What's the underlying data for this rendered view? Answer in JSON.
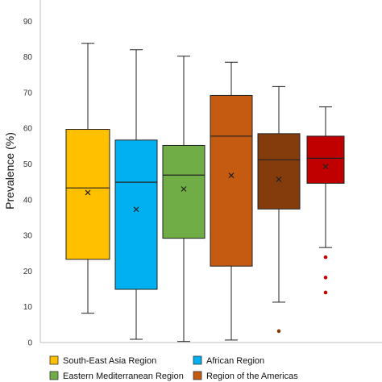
{
  "chart_data": {
    "type": "box",
    "ylabel": "Prevalence (%)",
    "ylim": [
      0,
      100
    ],
    "yticks": [
      0,
      10,
      20,
      30,
      40,
      50,
      60,
      70,
      80,
      90
    ],
    "grid": false,
    "legend_position": "bottom",
    "series": [
      {
        "name": "South-East Asia Region",
        "color": "#FFC000",
        "min": 8.2,
        "q1": 23.3,
        "median": 43.3,
        "q3": 59.7,
        "max": 83.8,
        "mean": 42.0,
        "outliers": []
      },
      {
        "name": "African Region",
        "color": "#00B0F0",
        "min": 0.9,
        "q1": 14.9,
        "median": 44.9,
        "q3": 56.7,
        "max": 82.0,
        "mean": 37.3,
        "outliers": []
      },
      {
        "name": "Eastern Mediterranean Region",
        "color": "#70AD47",
        "min": 0.3,
        "q1": 29.2,
        "median": 46.9,
        "q3": 55.2,
        "max": 80.2,
        "mean": 43.0,
        "outliers": []
      },
      {
        "name": "Region of the Americas",
        "color": "#C55A11",
        "min": 0.7,
        "q1": 21.4,
        "median": 57.8,
        "q3": 69.2,
        "max": 78.5,
        "mean": 46.8,
        "outliers": []
      },
      {
        "name": "",
        "color": "#843C0C",
        "min": 11.3,
        "q1": 37.4,
        "median": 51.2,
        "q3": 58.5,
        "max": 71.7,
        "mean": 45.7,
        "outliers": [
          3.2
        ]
      },
      {
        "name": "",
        "color": "#C00000",
        "min": 26.6,
        "q1": 44.6,
        "median": 51.6,
        "q3": 57.8,
        "max": 66.0,
        "mean": 49.3,
        "outliers": [
          23.9,
          18.2,
          14.0
        ]
      }
    ]
  }
}
